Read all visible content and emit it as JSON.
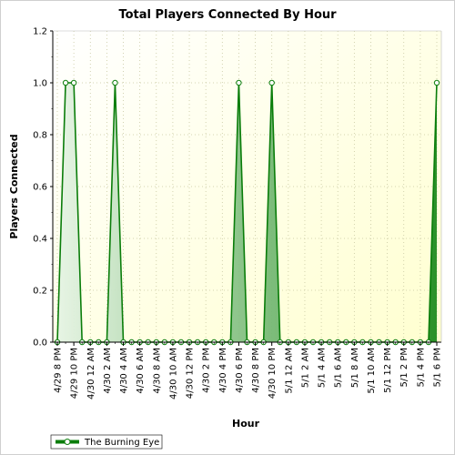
{
  "chart_data": {
    "type": "area",
    "title": "Total Players Connected By Hour",
    "xlabel": "Hour",
    "ylabel": "Players Connected",
    "ylim": [
      0,
      1.2
    ],
    "y_ticks": [
      "0.0",
      "0.2",
      "0.4",
      "0.6",
      "0.8",
      "1.0",
      "1.2"
    ],
    "x_hours": [
      {
        "t": "4/29 8 PM",
        "v": 0
      },
      {
        "t": "4/29 9 PM",
        "v": 1
      },
      {
        "t": "4/29 10 PM",
        "v": 1
      },
      {
        "t": "4/29 11 PM",
        "v": 0
      },
      {
        "t": "4/30 12 AM",
        "v": 0
      },
      {
        "t": "4/30 1 AM",
        "v": 0
      },
      {
        "t": "4/30 2 AM",
        "v": 0
      },
      {
        "t": "4/30 3 AM",
        "v": 1
      },
      {
        "t": "4/30 4 AM",
        "v": 0
      },
      {
        "t": "4/30 5 AM",
        "v": 0
      },
      {
        "t": "4/30 6 AM",
        "v": 0
      },
      {
        "t": "4/30 7 AM",
        "v": 0
      },
      {
        "t": "4/30 8 AM",
        "v": 0
      },
      {
        "t": "4/30 9 AM",
        "v": 0
      },
      {
        "t": "4/30 10 AM",
        "v": 0
      },
      {
        "t": "4/30 11 AM",
        "v": 0
      },
      {
        "t": "4/30 12 PM",
        "v": 0
      },
      {
        "t": "4/30 1 PM",
        "v": 0
      },
      {
        "t": "4/30 2 PM",
        "v": 0
      },
      {
        "t": "4/30 3 PM",
        "v": 0
      },
      {
        "t": "4/30 4 PM",
        "v": 0
      },
      {
        "t": "4/30 5 PM",
        "v": 0
      },
      {
        "t": "4/30 6 PM",
        "v": 1
      },
      {
        "t": "4/30 7 PM",
        "v": 0
      },
      {
        "t": "4/30 8 PM",
        "v": 0
      },
      {
        "t": "4/30 9 PM",
        "v": 0
      },
      {
        "t": "4/30 10 PM",
        "v": 1
      },
      {
        "t": "4/30 11 PM",
        "v": 0
      },
      {
        "t": "5/1 12 AM",
        "v": 0
      },
      {
        "t": "5/1 1 AM",
        "v": 0
      },
      {
        "t": "5/1 2 AM",
        "v": 0
      },
      {
        "t": "5/1 3 AM",
        "v": 0
      },
      {
        "t": "5/1 4 AM",
        "v": 0
      },
      {
        "t": "5/1 5 AM",
        "v": 0
      },
      {
        "t": "5/1 6 AM",
        "v": 0
      },
      {
        "t": "5/1 7 AM",
        "v": 0
      },
      {
        "t": "5/1 8 AM",
        "v": 0
      },
      {
        "t": "5/1 9 AM",
        "v": 0
      },
      {
        "t": "5/1 10 AM",
        "v": 0
      },
      {
        "t": "5/1 11 AM",
        "v": 0
      },
      {
        "t": "5/1 12 PM",
        "v": 0
      },
      {
        "t": "5/1 1 PM",
        "v": 0
      },
      {
        "t": "5/1 2 PM",
        "v": 0
      },
      {
        "t": "5/1 3 PM",
        "v": 0
      },
      {
        "t": "5/1 4 PM",
        "v": 0
      },
      {
        "t": "5/1 5 PM",
        "v": 0
      },
      {
        "t": "5/1 6 PM",
        "v": 1
      }
    ],
    "x_tick_labels": [
      "4/29 8 PM",
      "4/29 10 PM",
      "4/30 12 AM",
      "4/30 2 AM",
      "4/30 4 AM",
      "4/30 6 AM",
      "4/30 8 AM",
      "4/30 10 AM",
      "4/30 12 PM",
      "4/30 2 PM",
      "4/30 4 PM",
      "4/30 6 PM",
      "4/30 8 PM",
      "4/30 10 PM",
      "5/1 12 AM",
      "5/1 2 AM",
      "5/1 4 AM",
      "5/1 6 AM",
      "5/1 8 AM",
      "5/1 10 AM",
      "5/1 12 PM",
      "5/1 2 PM",
      "5/1 4 PM",
      "5/1 6 PM"
    ],
    "series": [
      {
        "name": "The Burning Eye",
        "color": "#0a7d0a"
      }
    ],
    "grid": true,
    "legend_position": "bottom-left",
    "colors": {
      "plot_background_start": "#ffffff",
      "plot_background_end": "#ffffd0",
      "line": "#0a7d0a",
      "fill_light": "#e8f5e6",
      "fill_dark": "#1e8a1e",
      "grid": "#c8c8a0"
    }
  }
}
